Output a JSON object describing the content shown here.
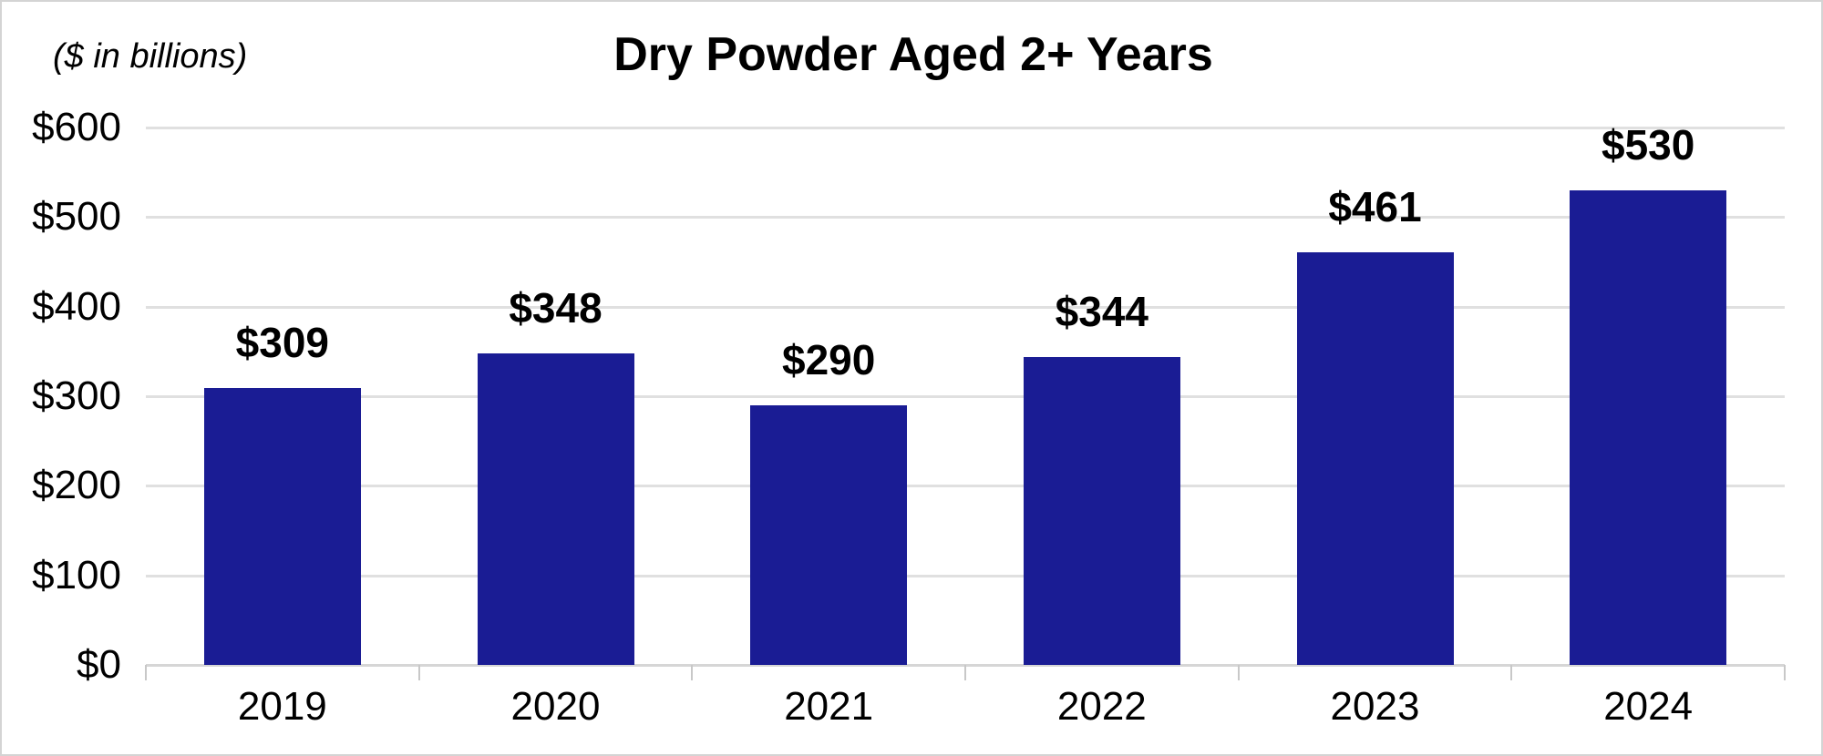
{
  "chart_data": {
    "type": "bar",
    "title": "Dry Powder Aged 2+ Years",
    "units_note": "($ in billions)",
    "categories": [
      "2019",
      "2020",
      "2021",
      "2022",
      "2023",
      "2024"
    ],
    "values": [
      309,
      348,
      290,
      344,
      461,
      530
    ],
    "value_labels": [
      "$309",
      "$348",
      "$290",
      "$344",
      "$461",
      "$530"
    ],
    "y_tick_labels": [
      "$600",
      "$500",
      "$400",
      "$300",
      "$200",
      "$100",
      "$0"
    ],
    "y_tick_values": [
      600,
      500,
      400,
      300,
      200,
      100,
      0
    ],
    "ylim": [
      0,
      600
    ],
    "grid": "horizontal-on",
    "legend": "none",
    "colors": {
      "bar": "#1a1c94",
      "gridline": "#e0e0e0",
      "axis_line": "#d6d6d6",
      "tick": "#c8c8c8",
      "text": "#000000",
      "background": "#ffffff",
      "frame_border": "#d4d4d4"
    }
  }
}
